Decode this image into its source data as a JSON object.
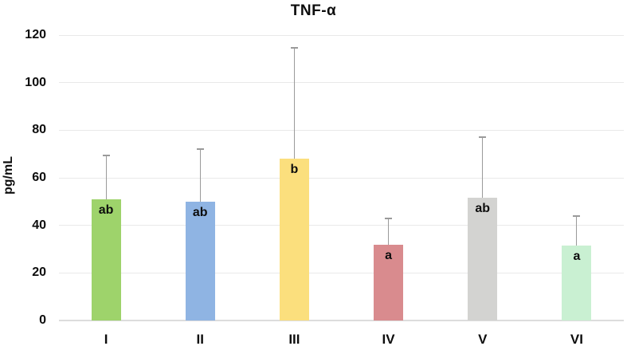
{
  "chart_data": {
    "type": "bar",
    "title": "TNF-α",
    "ylabel": "pg/mL",
    "xlabel": "",
    "categories": [
      "I",
      "II",
      "III",
      "IV",
      "V",
      "VI"
    ],
    "values": [
      51,
      50,
      68,
      32,
      51.5,
      31.5
    ],
    "error_top": [
      69.5,
      72,
      114.5,
      43,
      77,
      44
    ],
    "sig_labels": [
      "ab",
      "ab",
      "b",
      "a",
      "ab",
      "a"
    ],
    "bar_colors": [
      "#9ed36b",
      "#8fb4e3",
      "#fbdf7d",
      "#d98b8e",
      "#d3d3d1",
      "#c9f0d2"
    ],
    "ylim": [
      0,
      120
    ],
    "yticks": [
      0,
      20,
      40,
      60,
      80,
      100,
      120
    ],
    "grid": true,
    "legend_position": "none",
    "style": {
      "grid_color": "#e9e9e9",
      "axis_color": "#dcdcdc",
      "error_color": "#9a9a9a",
      "text_color": "#0d0d0d"
    }
  }
}
